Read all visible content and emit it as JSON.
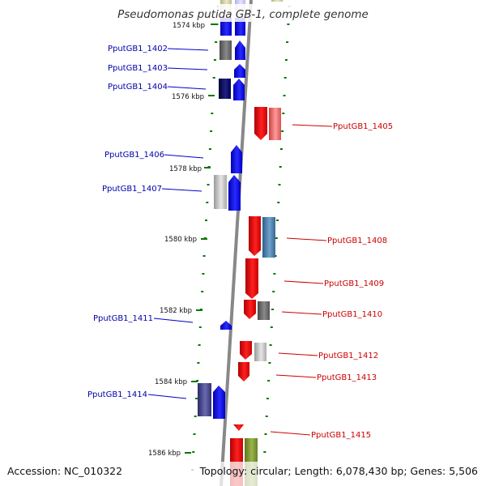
{
  "header": {
    "title": "Pseudomonas putida GB-1, complete genome"
  },
  "footer": {
    "accession": "Accession: NC_010322",
    "summary": "Topology: circular; Length: 6,078,430 bp; Genes: 5,506"
  },
  "axis": {
    "tick_labels": [
      "1574 kbp",
      "1576 kbp",
      "1578 kbp",
      "1580 kbp",
      "1582 kbp",
      "1584 kbp",
      "1586 kbp"
    ]
  },
  "genes": {
    "left": [
      "PputGB1_1402",
      "PputGB1_1403",
      "PputGB1_1404",
      "PputGB1_1406",
      "PputGB1_1407",
      "PputGB1_1411",
      "PputGB1_1414"
    ],
    "right": [
      "PputGB1_1405",
      "PputGB1_1408",
      "PputGB1_1409",
      "PputGB1_1410",
      "PputGB1_1412",
      "PputGB1_1413",
      "PputGB1_1415"
    ]
  },
  "colors": {
    "forward": "#0000ee",
    "reverse": "#ee0000",
    "backbone": "#888888",
    "tick": "#007700",
    "left_label": "#0000aa",
    "right_label": "#cc0000"
  }
}
